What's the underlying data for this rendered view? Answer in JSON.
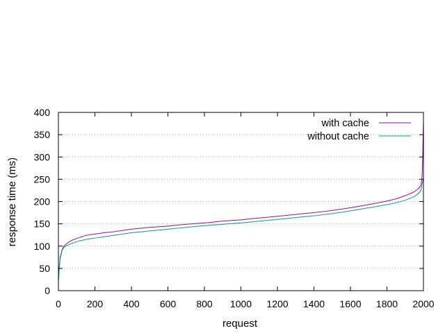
{
  "chart_data": {
    "type": "line",
    "title": "",
    "xlabel": "request",
    "ylabel": "response time (ms)",
    "xlim": [
      0,
      2000
    ],
    "ylim": [
      0,
      400
    ],
    "xticks": [
      0,
      200,
      400,
      600,
      800,
      1000,
      1200,
      1400,
      1600,
      1800,
      2000
    ],
    "yticks": [
      0,
      50,
      100,
      150,
      200,
      250,
      300,
      350,
      400
    ],
    "grid": "horizontal dotted",
    "legend_position": "top-right",
    "series": [
      {
        "name": "with cache",
        "color": "#9400d3",
        "x": [
          0,
          5,
          10,
          20,
          30,
          40,
          60,
          80,
          100,
          150,
          200,
          250,
          300,
          350,
          400,
          450,
          500,
          600,
          700,
          800,
          900,
          1000,
          1100,
          1200,
          1300,
          1400,
          1500,
          1600,
          1700,
          1800,
          1850,
          1900,
          1950,
          1970,
          1985,
          1990,
          1993,
          1996,
          1998,
          2000
        ],
        "y": [
          25,
          55,
          75,
          92,
          100,
          104,
          110,
          114,
          117,
          124,
          127,
          130,
          132,
          135,
          138,
          140,
          142,
          145,
          149,
          152,
          156,
          159,
          163,
          167,
          171,
          175,
          180,
          186,
          193,
          201,
          206,
          213,
          222,
          228,
          235,
          245,
          262,
          300,
          350,
          380
        ]
      },
      {
        "name": "without cache",
        "color": "#009e73",
        "x": [
          0,
          5,
          10,
          20,
          30,
          40,
          60,
          80,
          100,
          150,
          200,
          250,
          300,
          350,
          400,
          450,
          500,
          600,
          700,
          800,
          900,
          1000,
          1100,
          1200,
          1300,
          1400,
          1500,
          1600,
          1700,
          1800,
          1850,
          1900,
          1950,
          1970,
          1985,
          1990,
          1993,
          1996,
          1998,
          2000
        ],
        "y": [
          20,
          50,
          72,
          90,
          97,
          100,
          104,
          107,
          110,
          115,
          118,
          121,
          124,
          127,
          130,
          132,
          134,
          138,
          142,
          146,
          149,
          152,
          156,
          160,
          164,
          168,
          173,
          179,
          186,
          193,
          197,
          203,
          211,
          217,
          224,
          232,
          240,
          245,
          250,
          253
        ]
      }
    ]
  }
}
